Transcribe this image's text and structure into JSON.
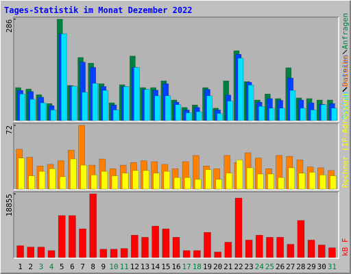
{
  "chart_data": [
    {
      "type": "bar",
      "title": "Tages-Statistik im Monat Dezember 2022",
      "ylim": [
        0,
        286
      ],
      "yticks": [
        286
      ],
      "series": [
        {
          "name": "Anfragen",
          "color": "#008040",
          "values": [
            93,
            89,
            73,
            48,
            286,
            99,
            178,
            162,
            104,
            50,
            101,
            182,
            93,
            93,
            112,
            58,
            37,
            44,
            93,
            35,
            112,
            197,
            110,
            58,
            75,
            62,
            149,
            64,
            62,
            58,
            58
          ]
        },
        {
          "name": "Dateien",
          "color": "#0040ff",
          "values": [
            85,
            82,
            66,
            42,
            245,
            97,
            165,
            150,
            96,
            44,
            96,
            150,
            88,
            86,
            104,
            52,
            30,
            37,
            88,
            30,
            72,
            187,
            108,
            52,
            62,
            57,
            120,
            58,
            50,
            46,
            48
          ]
        },
        {
          "name": "Seiten",
          "color": "#00e0ff",
          "values": [
            75,
            60,
            50,
            30,
            245,
            97,
            80,
            105,
            85,
            30,
            96,
            150,
            88,
            70,
            70,
            45,
            22,
            25,
            70,
            20,
            55,
            176,
            100,
            40,
            35,
            35,
            85,
            35,
            30,
            45,
            35
          ]
        }
      ]
    },
    {
      "type": "bar",
      "ylim": [
        0,
        72
      ],
      "yticks": [
        72
      ],
      "series": [
        {
          "name": "Besuche",
          "color": "#ff8000",
          "values": [
            45,
            36,
            26,
            28,
            32,
            44,
            72,
            27,
            34,
            23,
            27,
            30,
            32,
            31,
            28,
            23,
            31,
            38,
            26,
            23,
            38,
            30,
            41,
            35,
            23,
            38,
            37,
            33,
            25,
            24,
            21
          ]
        },
        {
          "name": "Rechner (IP-Adressen)",
          "color": "#ffff00",
          "values": [
            35,
            15,
            20,
            23,
            14,
            34,
            27,
            16,
            20,
            15,
            18,
            21,
            21,
            18,
            20,
            13,
            13,
            11,
            22,
            11,
            18,
            33,
            24,
            17,
            17,
            13,
            24,
            18,
            19,
            16,
            15
          ]
        }
      ]
    },
    {
      "type": "bar",
      "ylim": [
        0,
        18855
      ],
      "yticks": [
        18855
      ],
      "categories": [
        "1",
        "2",
        "3",
        "4",
        "5",
        "6",
        "7",
        "8",
        "9",
        "10",
        "11",
        "12",
        "13",
        "14",
        "15",
        "16",
        "17",
        "18",
        "19",
        "20",
        "21",
        "22",
        "23",
        "24",
        "25",
        "26",
        "27",
        "28",
        "29",
        "30",
        "31"
      ],
      "category_colors": [
        "#000000",
        "#000000",
        "#008040",
        "#008040",
        "#000000",
        "#000000",
        "#000000",
        "#000000",
        "#000000",
        "#008040",
        "#008040",
        "#000000",
        "#000000",
        "#000000",
        "#000000",
        "#000000",
        "#008040",
        "#008040",
        "#000000",
        "#000000",
        "#000000",
        "#000000",
        "#000000",
        "#008040",
        "#008040",
        "#000000",
        "#000000",
        "#000000",
        "#000000",
        "#000000",
        "#008040"
      ],
      "series": [
        {
          "name": "kB F",
          "color": "#ff0000",
          "values": [
            3522,
            3108,
            3108,
            2072,
            12432,
            12432,
            8495,
            18855,
            2486,
            2486,
            2694,
            6630,
            6009,
            9324,
            8495,
            6009,
            2072,
            2072,
            7459,
            1658,
            4558,
            17612,
            5180,
            6630,
            6009,
            6009,
            3937,
            10982,
            5180,
            3730,
            2901
          ]
        }
      ]
    }
  ]
}
